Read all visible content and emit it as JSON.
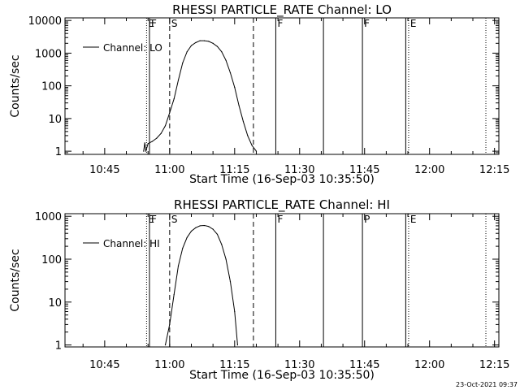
{
  "footer_timestamp": "23-Oct-2021 09:37",
  "chart_data": [
    {
      "type": "line",
      "title": "RHESSI PARTICLE_RATE Channel: LO",
      "xlabel": "Start Time (16-Sep-03 10:35:50)",
      "ylabel": "Counts/sec",
      "yscale": "log",
      "xlim": [
        "10:35:50",
        "12:16:00"
      ],
      "ylim": [
        0.8,
        12000
      ],
      "xticks": [
        "10:45",
        "11:00",
        "11:15",
        "11:30",
        "11:45",
        "12:00",
        "12:15"
      ],
      "yticks": [
        {
          "value": 1,
          "label": "1"
        },
        {
          "value": 10,
          "label": "10"
        },
        {
          "value": 100,
          "label": "100"
        },
        {
          "value": 1000,
          "label": "1000"
        },
        {
          "value": 10000,
          "label": "10000"
        }
      ],
      "legend": {
        "text": "Channel: LO",
        "placement": "top-left"
      },
      "series": [
        {
          "name": "Channel: LO",
          "points": [
            [
              "10:54:00",
              1
            ],
            [
              "10:54:15",
              1.8
            ],
            [
              "10:54:30",
              1
            ],
            [
              "10:55:00",
              1.7
            ],
            [
              "10:56:00",
              2
            ],
            [
              "10:57:00",
              2.5
            ],
            [
              "10:58:00",
              3.5
            ],
            [
              "10:59:00",
              6
            ],
            [
              "11:00:00",
              15
            ],
            [
              "11:01:00",
              40
            ],
            [
              "11:02:00",
              150
            ],
            [
              "11:03:00",
              500
            ],
            [
              "11:04:00",
              1100
            ],
            [
              "11:05:00",
              1700
            ],
            [
              "11:06:00",
              2100
            ],
            [
              "11:07:00",
              2400
            ],
            [
              "11:08:00",
              2400
            ],
            [
              "11:09:00",
              2300
            ],
            [
              "11:10:00",
              2000
            ],
            [
              "11:11:00",
              1600
            ],
            [
              "11:12:00",
              1100
            ],
            [
              "11:13:00",
              600
            ],
            [
              "11:14:00",
              250
            ],
            [
              "11:15:00",
              90
            ],
            [
              "11:16:00",
              25
            ],
            [
              "11:17:00",
              8
            ],
            [
              "11:18:00",
              3
            ],
            [
              "11:19:00",
              1.5
            ],
            [
              "11:20:00",
              1
            ]
          ]
        }
      ],
      "markers": [
        {
          "time": "10:54:40",
          "style": "dotted",
          "label": "E"
        },
        {
          "time": "10:55:20",
          "style": "solid",
          "label": "F"
        },
        {
          "time": "11:00:00",
          "style": "dashed",
          "label": "S"
        },
        {
          "time": "11:19:20",
          "style": "dashed",
          "label": ""
        },
        {
          "time": "11:24:30",
          "style": "solid",
          "label": "F"
        },
        {
          "time": "11:35:30",
          "style": "solid",
          "label": ""
        },
        {
          "time": "11:44:30",
          "style": "solid",
          "label": "F"
        },
        {
          "time": "11:54:30",
          "style": "solid",
          "label": ""
        },
        {
          "time": "11:55:10",
          "style": "dotted",
          "label": "E"
        },
        {
          "time": "12:13:00",
          "style": "dotted",
          "label": ""
        }
      ]
    },
    {
      "type": "line",
      "title": "RHESSI PARTICLE_RATE Channel: HI",
      "xlabel": "Start Time (16-Sep-03 10:35:50)",
      "ylabel": "Counts/sec",
      "yscale": "log",
      "xlim": [
        "10:35:50",
        "12:16:00"
      ],
      "ylim": [
        0.9,
        1150
      ],
      "xticks": [
        "10:45",
        "11:00",
        "11:15",
        "11:30",
        "11:45",
        "12:00",
        "12:15"
      ],
      "yticks": [
        {
          "value": 1,
          "label": "1"
        },
        {
          "value": 10,
          "label": "10"
        },
        {
          "value": 100,
          "label": "100"
        },
        {
          "value": 1000,
          "label": "1000"
        }
      ],
      "legend": {
        "text": "Channel: HI",
        "placement": "top-left"
      },
      "series": [
        {
          "name": "Channel: HI",
          "points": [
            [
              "10:59:00",
              1
            ],
            [
              "11:00:00",
              3
            ],
            [
              "11:01:00",
              15
            ],
            [
              "11:02:00",
              70
            ],
            [
              "11:03:00",
              180
            ],
            [
              "11:04:00",
              320
            ],
            [
              "11:05:00",
              450
            ],
            [
              "11:06:00",
              540
            ],
            [
              "11:07:00",
              600
            ],
            [
              "11:08:00",
              610
            ],
            [
              "11:09:00",
              580
            ],
            [
              "11:10:00",
              500
            ],
            [
              "11:11:00",
              380
            ],
            [
              "11:12:00",
              220
            ],
            [
              "11:13:00",
              100
            ],
            [
              "11:14:00",
              30
            ],
            [
              "11:15:00",
              6
            ],
            [
              "11:15:40",
              1
            ]
          ]
        }
      ],
      "markers": [
        {
          "time": "10:54:40",
          "style": "dotted",
          "label": "E"
        },
        {
          "time": "10:55:20",
          "style": "solid",
          "label": "F"
        },
        {
          "time": "11:00:00",
          "style": "dashed",
          "label": "S"
        },
        {
          "time": "11:19:20",
          "style": "dashed",
          "label": ""
        },
        {
          "time": "11:24:30",
          "style": "solid",
          "label": "F"
        },
        {
          "time": "11:35:30",
          "style": "solid",
          "label": ""
        },
        {
          "time": "11:44:30",
          "style": "solid",
          "label": "P"
        },
        {
          "time": "11:54:30",
          "style": "solid",
          "label": ""
        },
        {
          "time": "11:55:10",
          "style": "dotted",
          "label": "E"
        },
        {
          "time": "12:13:00",
          "style": "dotted",
          "label": ""
        }
      ]
    }
  ]
}
